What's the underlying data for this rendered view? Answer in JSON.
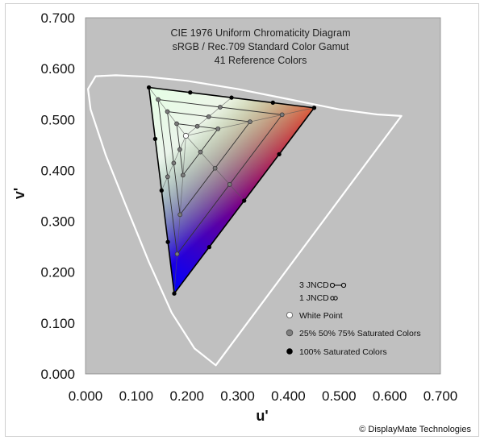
{
  "chart_data": {
    "type": "scatter",
    "title": [
      "CIE 1976 Uniform Chromaticity Diagram",
      "sRGB / Rec.709 Standard Color Gamut",
      "41 Reference Colors"
    ],
    "xlabel": "u'",
    "ylabel": "v'",
    "xlim": [
      0.0,
      0.7
    ],
    "ylim": [
      0.0,
      0.7
    ],
    "x_ticks": [
      "0.000",
      "0.100",
      "0.200",
      "0.300",
      "0.400",
      "0.500",
      "0.600",
      "0.700"
    ],
    "y_ticks": [
      "0.000",
      "0.100",
      "0.200",
      "0.300",
      "0.400",
      "0.500",
      "0.600",
      "0.700"
    ],
    "background_color": "#c0c0c0",
    "locus_color": "#ffffff",
    "gamut": {
      "red": [
        0.451,
        0.523
      ],
      "green": [
        0.125,
        0.563
      ],
      "blue": [
        0.175,
        0.158
      ],
      "white": [
        0.198,
        0.468
      ]
    },
    "saturation_levels": [
      0.25,
      0.5,
      0.75,
      1.0
    ],
    "spectral_locus": [
      [
        0.257,
        0.017
      ],
      [
        0.215,
        0.05
      ],
      [
        0.17,
        0.12
      ],
      [
        0.125,
        0.22
      ],
      [
        0.08,
        0.33
      ],
      [
        0.04,
        0.43
      ],
      [
        0.01,
        0.52
      ],
      [
        0.005,
        0.56
      ],
      [
        0.02,
        0.585
      ],
      [
        0.06,
        0.587
      ],
      [
        0.12,
        0.584
      ],
      [
        0.2,
        0.576
      ],
      [
        0.3,
        0.56
      ],
      [
        0.4,
        0.54
      ],
      [
        0.5,
        0.52
      ],
      [
        0.575,
        0.51
      ],
      [
        0.623,
        0.507
      ]
    ],
    "legend": {
      "jncd3": "3 JNCD",
      "jncd1": "1 JNCD",
      "white_point": "White Point",
      "partial": "25%  50%  75% Saturated Colors",
      "full": "100% Saturated Colors"
    },
    "legend_position": "bottom-right",
    "grid": false
  },
  "copyright": "© DisplayMate Technologies"
}
